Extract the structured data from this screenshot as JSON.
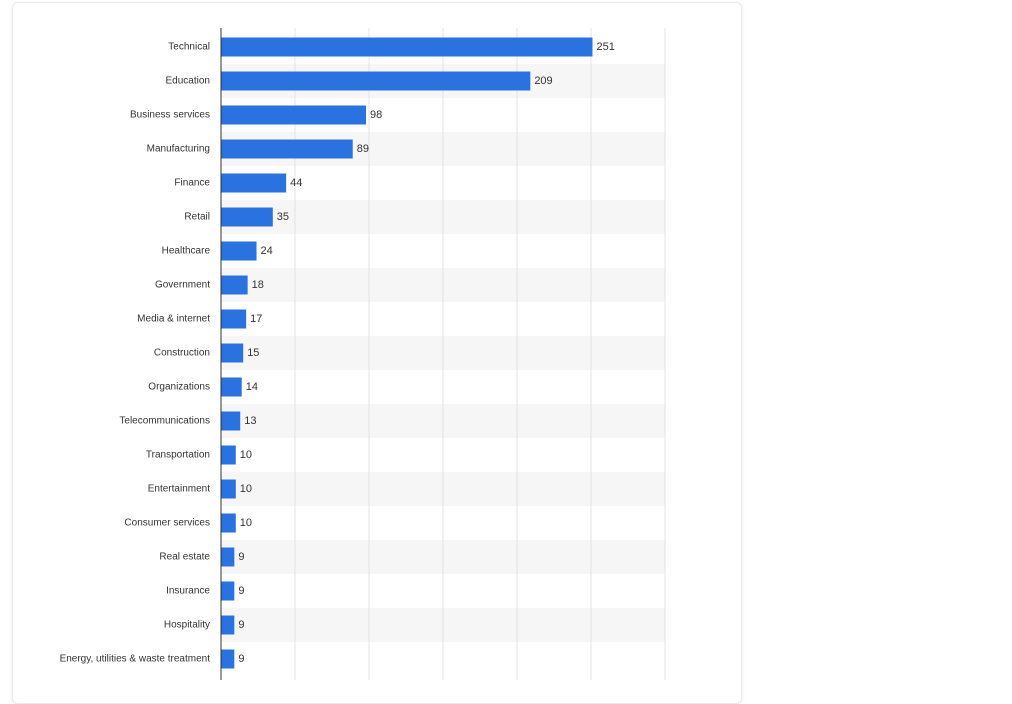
{
  "chart_data": {
    "type": "bar",
    "orientation": "horizontal",
    "title": "",
    "xlabel": "",
    "ylabel": "",
    "categories": [
      "Technical",
      "Education",
      "Business services",
      "Manufacturing",
      "Finance",
      "Retail",
      "Healthcare",
      "Government",
      "Media & internet",
      "Construction",
      "Organizations",
      "Telecommunications",
      "Transportation",
      "Entertainment",
      "Consumer services",
      "Real estate",
      "Insurance",
      "Hospitality",
      "Energy, utilities & waste treatment"
    ],
    "values": [
      251,
      209,
      98,
      89,
      44,
      35,
      24,
      18,
      17,
      15,
      14,
      13,
      10,
      10,
      10,
      9,
      9,
      9,
      9
    ],
    "xlim": [
      0,
      300
    ],
    "grid": true,
    "data_labels": true,
    "bar_color": "#2a72e0"
  }
}
